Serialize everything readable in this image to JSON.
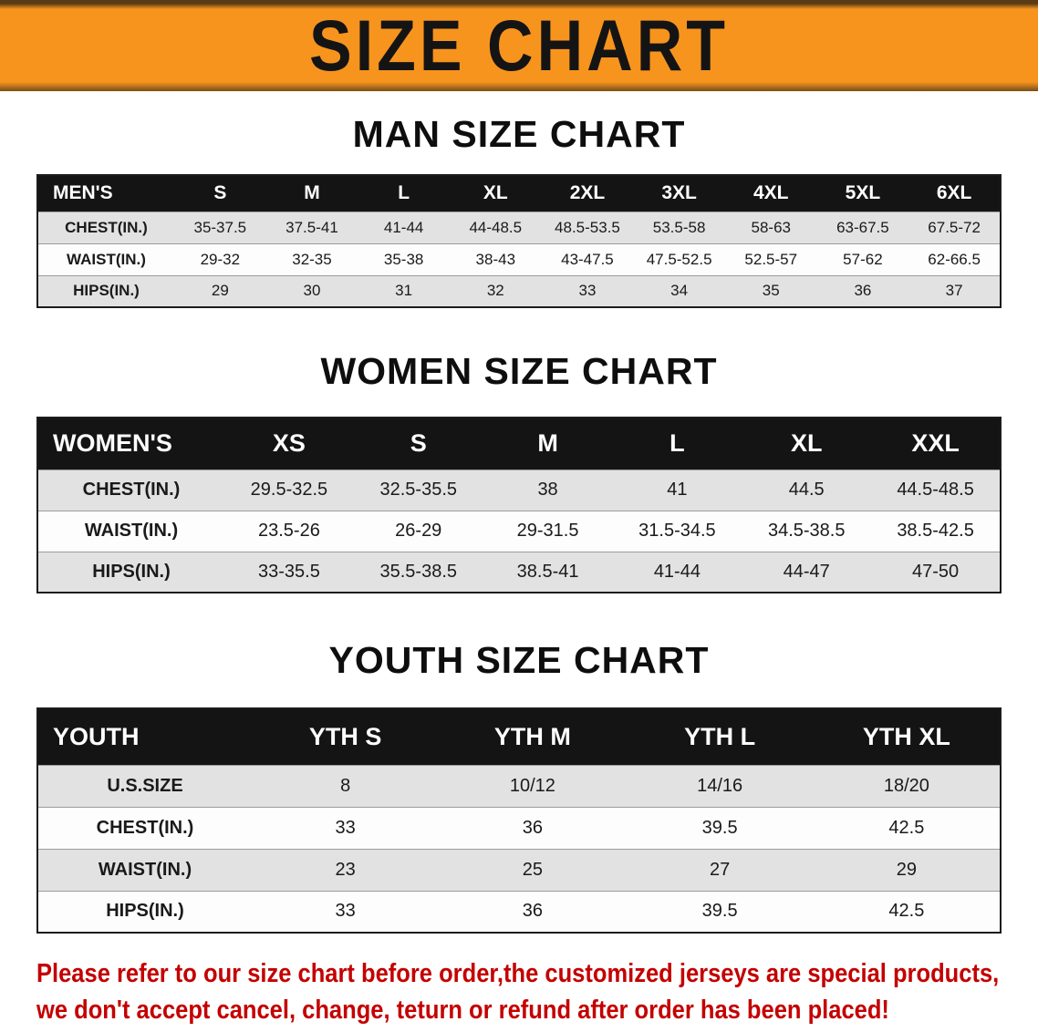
{
  "banner": {
    "title": "SIZE CHART"
  },
  "colors": {
    "banner_bg": "#F7941E",
    "table_header_bg": "#141414",
    "row_alt_gray": "#E2E2E2",
    "disclaimer_red": "#C40000"
  },
  "sections": {
    "men": {
      "heading": "MAN SIZE CHART",
      "table": {
        "header": [
          "MEN'S",
          "S",
          "M",
          "L",
          "XL",
          "2XL",
          "3XL",
          "4XL",
          "5XL",
          "6XL"
        ],
        "rows": [
          [
            "CHEST(IN.)",
            "35-37.5",
            "37.5-41",
            "41-44",
            "44-48.5",
            "48.5-53.5",
            "53.5-58",
            "58-63",
            "63-67.5",
            "67.5-72"
          ],
          [
            "WAIST(IN.)",
            "29-32",
            "32-35",
            "35-38",
            "38-43",
            "43-47.5",
            "47.5-52.5",
            "52.5-57",
            "57-62",
            "62-66.5"
          ],
          [
            "HIPS(IN.)",
            "29",
            "30",
            "31",
            "32",
            "33",
            "34",
            "35",
            "36",
            "37"
          ]
        ]
      }
    },
    "women": {
      "heading": "WOMEN SIZE CHART",
      "table": {
        "header": [
          "WOMEN'S",
          "XS",
          "S",
          "M",
          "L",
          "XL",
          "XXL"
        ],
        "rows": [
          [
            "CHEST(IN.)",
            "29.5-32.5",
            "32.5-35.5",
            "38",
            "41",
            "44.5",
            "44.5-48.5"
          ],
          [
            "WAIST(IN.)",
            "23.5-26",
            "26-29",
            "29-31.5",
            "31.5-34.5",
            "34.5-38.5",
            "38.5-42.5"
          ],
          [
            "HIPS(IN.)",
            "33-35.5",
            "35.5-38.5",
            "38.5-41",
            "41-44",
            "44-47",
            "47-50"
          ]
        ]
      }
    },
    "youth": {
      "heading": "YOUTH SIZE CHART",
      "table": {
        "header": [
          "YOUTH",
          "YTH S",
          "YTH M",
          "YTH L",
          "YTH XL"
        ],
        "rows": [
          [
            "U.S.SIZE",
            "8",
            "10/12",
            "14/16",
            "18/20"
          ],
          [
            "CHEST(IN.)",
            "33",
            "36",
            "39.5",
            "42.5"
          ],
          [
            "WAIST(IN.)",
            "23",
            "25",
            "27",
            "29"
          ],
          [
            "HIPS(IN.)",
            "33",
            "36",
            "39.5",
            "42.5"
          ]
        ]
      }
    }
  },
  "disclaimer": {
    "line1": "Please refer to our size chart before order,the customized jerseys are special products,",
    "line2": "we don't accept cancel, change, teturn or refund after order has been placed!"
  }
}
